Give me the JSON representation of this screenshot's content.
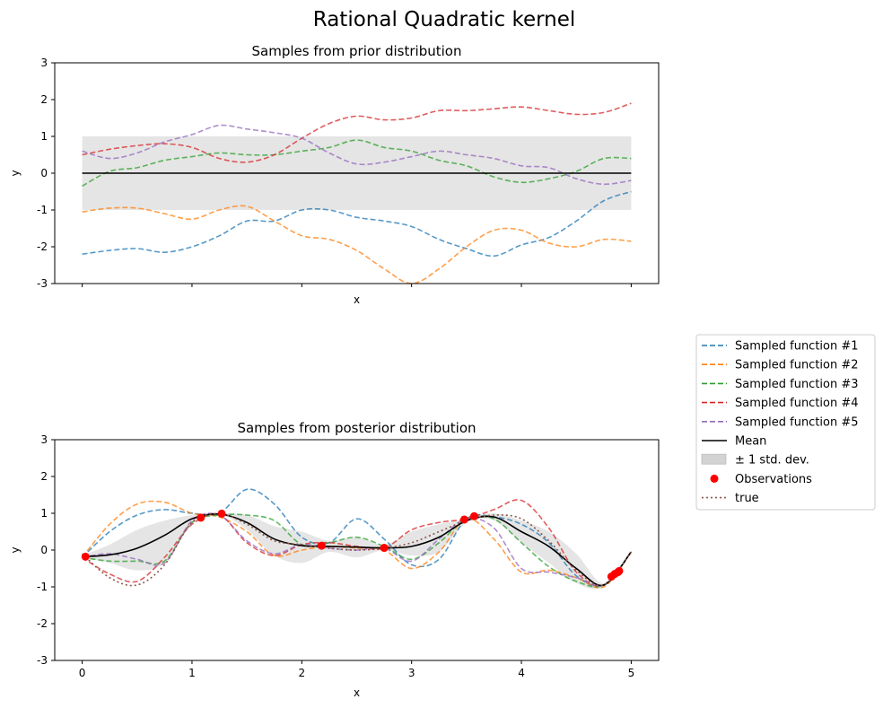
{
  "figure": {
    "suptitle": "Rational Quadratic kernel"
  },
  "colors": {
    "s1": "#1f77b4",
    "s2": "#ff7f0e",
    "s3": "#2ca02c",
    "s4": "#d62728",
    "s5": "#9467bd",
    "mean": "#000000",
    "band": "#d3d3d3",
    "obs": "#ff0000",
    "true": "#8c564b"
  },
  "legend": {
    "placement": "right, outside axes",
    "entries": [
      {
        "key": "s1",
        "label": "Sampled function #1",
        "style": "dashed"
      },
      {
        "key": "s2",
        "label": "Sampled function #2",
        "style": "dashed"
      },
      {
        "key": "s3",
        "label": "Sampled function #3",
        "style": "dashed"
      },
      {
        "key": "s4",
        "label": "Sampled function #4",
        "style": "dashed"
      },
      {
        "key": "s5",
        "label": "Sampled function #5",
        "style": "dashed"
      },
      {
        "key": "mean",
        "label": "Mean",
        "style": "solid"
      },
      {
        "key": "band",
        "label": "± 1 std. dev.",
        "style": "patch"
      },
      {
        "key": "obs",
        "label": "Observations",
        "style": "marker"
      },
      {
        "key": "true",
        "label": "true",
        "style": "dotted"
      }
    ]
  },
  "chart_data": [
    {
      "type": "line",
      "title": "Samples from prior distribution",
      "xlabel": "x",
      "ylabel": "y",
      "xlim": [
        -0.25,
        5.25
      ],
      "ylim": [
        -3,
        3
      ],
      "xticks": [
        0,
        1,
        2,
        3,
        4,
        5
      ],
      "xtick_labels_shown": false,
      "yticks": [
        -3,
        -2,
        -1,
        0,
        1,
        2,
        3
      ],
      "x": [
        0,
        0.25,
        0.5,
        0.75,
        1,
        1.25,
        1.5,
        1.75,
        2,
        2.25,
        2.5,
        2.75,
        3,
        3.25,
        3.5,
        3.75,
        4,
        4.25,
        4.5,
        4.75,
        5
      ],
      "series": [
        {
          "name": "Sampled function #1",
          "key": "s1",
          "values": [
            -2.2,
            -2.1,
            -2.05,
            -2.15,
            -2.0,
            -1.7,
            -1.3,
            -1.3,
            -1.0,
            -1.0,
            -1.2,
            -1.3,
            -1.45,
            -1.8,
            -2.05,
            -2.25,
            -1.95,
            -1.75,
            -1.3,
            -0.75,
            -0.5
          ]
        },
        {
          "name": "Sampled function #2",
          "key": "s2",
          "values": [
            -1.05,
            -0.95,
            -0.95,
            -1.1,
            -1.25,
            -1.0,
            -0.9,
            -1.3,
            -1.7,
            -1.8,
            -2.1,
            -2.6,
            -3.0,
            -2.6,
            -2.0,
            -1.55,
            -1.55,
            -1.9,
            -2.0,
            -1.8,
            -1.85
          ]
        },
        {
          "name": "Sampled function #3",
          "key": "s3",
          "values": [
            -0.35,
            0.05,
            0.15,
            0.35,
            0.45,
            0.55,
            0.5,
            0.5,
            0.6,
            0.7,
            0.9,
            0.7,
            0.6,
            0.35,
            0.2,
            -0.1,
            -0.25,
            -0.15,
            0.05,
            0.4,
            0.4
          ]
        },
        {
          "name": "Sampled function #4",
          "key": "s4",
          "values": [
            0.5,
            0.65,
            0.75,
            0.8,
            0.7,
            0.4,
            0.3,
            0.5,
            0.95,
            1.35,
            1.55,
            1.45,
            1.5,
            1.7,
            1.7,
            1.75,
            1.8,
            1.7,
            1.6,
            1.65,
            1.9
          ]
        },
        {
          "name": "Sampled function #5",
          "key": "s5",
          "values": [
            0.6,
            0.4,
            0.55,
            0.85,
            1.05,
            1.3,
            1.2,
            1.1,
            0.95,
            0.55,
            0.25,
            0.3,
            0.45,
            0.6,
            0.5,
            0.4,
            0.2,
            0.15,
            -0.15,
            -0.3,
            -0.2
          ]
        },
        {
          "name": "Mean",
          "key": "mean",
          "values": [
            0,
            0,
            0,
            0,
            0,
            0,
            0,
            0,
            0,
            0,
            0,
            0,
            0,
            0,
            0,
            0,
            0,
            0,
            0,
            0,
            0
          ]
        }
      ],
      "band": {
        "lower": -1,
        "upper": 1
      }
    },
    {
      "type": "line",
      "title": "Samples from posterior distribution",
      "xlabel": "x",
      "ylabel": "y",
      "xlim": [
        -0.25,
        5.25
      ],
      "ylim": [
        -3,
        3
      ],
      "xticks": [
        0,
        1,
        2,
        3,
        4,
        5
      ],
      "xtick_labels_shown": true,
      "yticks": [
        -3,
        -2,
        -1,
        0,
        1,
        2,
        3
      ],
      "x": [
        0,
        0.25,
        0.5,
        0.75,
        1,
        1.25,
        1.5,
        1.75,
        2,
        2.25,
        2.5,
        2.75,
        3,
        3.25,
        3.5,
        3.75,
        4,
        4.25,
        4.5,
        4.75,
        5
      ],
      "series": [
        {
          "name": "Sampled function #1",
          "key": "s1",
          "values": [
            -0.2,
            0.5,
            0.95,
            1.1,
            1.0,
            1.0,
            1.65,
            1.25,
            0.35,
            0.2,
            0.85,
            0.3,
            -0.4,
            -0.25,
            0.85,
            0.9,
            0.7,
            0.2,
            -0.7,
            -0.95,
            -0.05
          ]
        },
        {
          "name": "Sampled function #2",
          "key": "s2",
          "values": [
            -0.2,
            0.7,
            1.25,
            1.3,
            1.0,
            0.9,
            0.5,
            -0.15,
            0.0,
            0.1,
            0.05,
            0.0,
            -0.5,
            -0.05,
            0.85,
            0.3,
            -0.6,
            -0.55,
            -0.75,
            -1.0,
            -0.05
          ]
        },
        {
          "name": "Sampled function #3",
          "key": "s3",
          "values": [
            -0.2,
            -0.3,
            -0.3,
            -0.3,
            0.75,
            0.95,
            0.95,
            0.8,
            0.15,
            0.2,
            0.35,
            0.1,
            -0.25,
            0.2,
            0.85,
            0.85,
            0.2,
            -0.45,
            -0.85,
            -0.95,
            -0.05
          ]
        },
        {
          "name": "Sampled function #4",
          "key": "s4",
          "values": [
            -0.2,
            -0.65,
            -0.85,
            -0.2,
            0.7,
            0.95,
            0.2,
            -0.15,
            0.15,
            0.2,
            0.1,
            0.05,
            0.55,
            0.75,
            0.85,
            1.1,
            1.35,
            0.6,
            -0.6,
            -0.95,
            -0.05
          ]
        },
        {
          "name": "Sampled function #5",
          "key": "s5",
          "values": [
            -0.2,
            -0.1,
            -0.25,
            -0.35,
            0.8,
            0.95,
            0.25,
            -0.1,
            0.15,
            0.05,
            0.0,
            0.05,
            -0.3,
            0.3,
            0.85,
            0.6,
            -0.5,
            -0.6,
            -0.75,
            -0.95,
            -0.05
          ]
        },
        {
          "name": "Mean",
          "key": "mean",
          "values": [
            -0.18,
            -0.13,
            0.05,
            0.4,
            0.85,
            0.98,
            0.75,
            0.3,
            0.12,
            0.1,
            0.08,
            0.06,
            0.1,
            0.35,
            0.8,
            0.9,
            0.5,
            0.1,
            -0.5,
            -0.95,
            -0.05
          ]
        },
        {
          "name": "true",
          "key": "true",
          "values": [
            -0.1,
            -0.75,
            -0.95,
            -0.4,
            0.75,
            0.99,
            0.7,
            0.25,
            0.15,
            0.05,
            0.0,
            0.05,
            0.2,
            0.5,
            0.8,
            0.95,
            0.85,
            0.25,
            -0.55,
            -0.95,
            -0.05
          ]
        }
      ],
      "band": {
        "lower": [
          -0.2,
          -0.35,
          -0.55,
          -0.35,
          0.7,
          0.95,
          0.55,
          -0.15,
          -0.35,
          -0.05,
          -0.2,
          0.0,
          -0.15,
          -0.05,
          0.75,
          0.8,
          0.2,
          -0.35,
          -0.9,
          -1.0,
          -0.05
        ],
        "upper": [
          -0.15,
          0.15,
          0.55,
          0.8,
          0.95,
          1.0,
          0.95,
          0.65,
          0.5,
          0.25,
          0.35,
          0.15,
          0.5,
          0.7,
          0.85,
          1.0,
          0.8,
          0.5,
          -0.1,
          -0.9,
          -0.05
        ]
      },
      "observations": {
        "name": "Observations",
        "x": [
          0.03,
          1.08,
          1.27,
          2.18,
          2.75,
          3.48,
          3.57,
          4.82,
          4.85,
          4.88,
          4.89
        ],
        "y": [
          -0.18,
          0.88,
          0.99,
          0.12,
          0.06,
          0.83,
          0.92,
          -0.72,
          -0.65,
          -0.6,
          -0.57
        ]
      }
    }
  ]
}
